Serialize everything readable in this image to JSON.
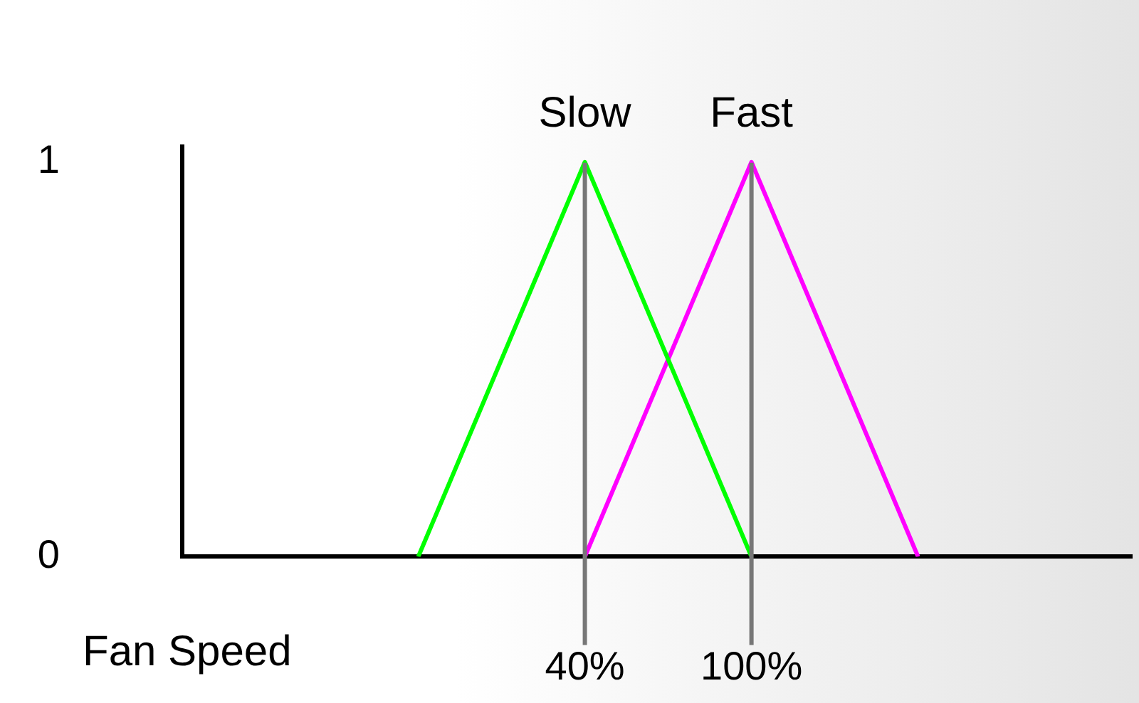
{
  "chart_data": {
    "type": "line",
    "xlabel": "Fan Speed",
    "series": [
      {
        "name": "Slow",
        "color": "#00ff00",
        "x": [
          -20,
          40,
          100
        ],
        "values": [
          0,
          1,
          0
        ]
      },
      {
        "name": "Fast",
        "color": "#ff00ff",
        "x": [
          40,
          100,
          160
        ],
        "values": [
          0,
          1,
          0
        ]
      }
    ],
    "xlim": [
      -105,
      237
    ],
    "xticks": [
      {
        "value": 40,
        "label": "40%"
      },
      {
        "value": 100,
        "label": "100%"
      }
    ],
    "ylim": [
      0,
      1.04
    ],
    "yticks": [
      0,
      1
    ],
    "ref_lines": [
      {
        "axis": "x",
        "value": 40,
        "color": "#777777"
      },
      {
        "axis": "x",
        "value": 100,
        "color": "#777777"
      }
    ],
    "grid": false,
    "legend": false,
    "marker": "none",
    "line_style": "solid"
  }
}
